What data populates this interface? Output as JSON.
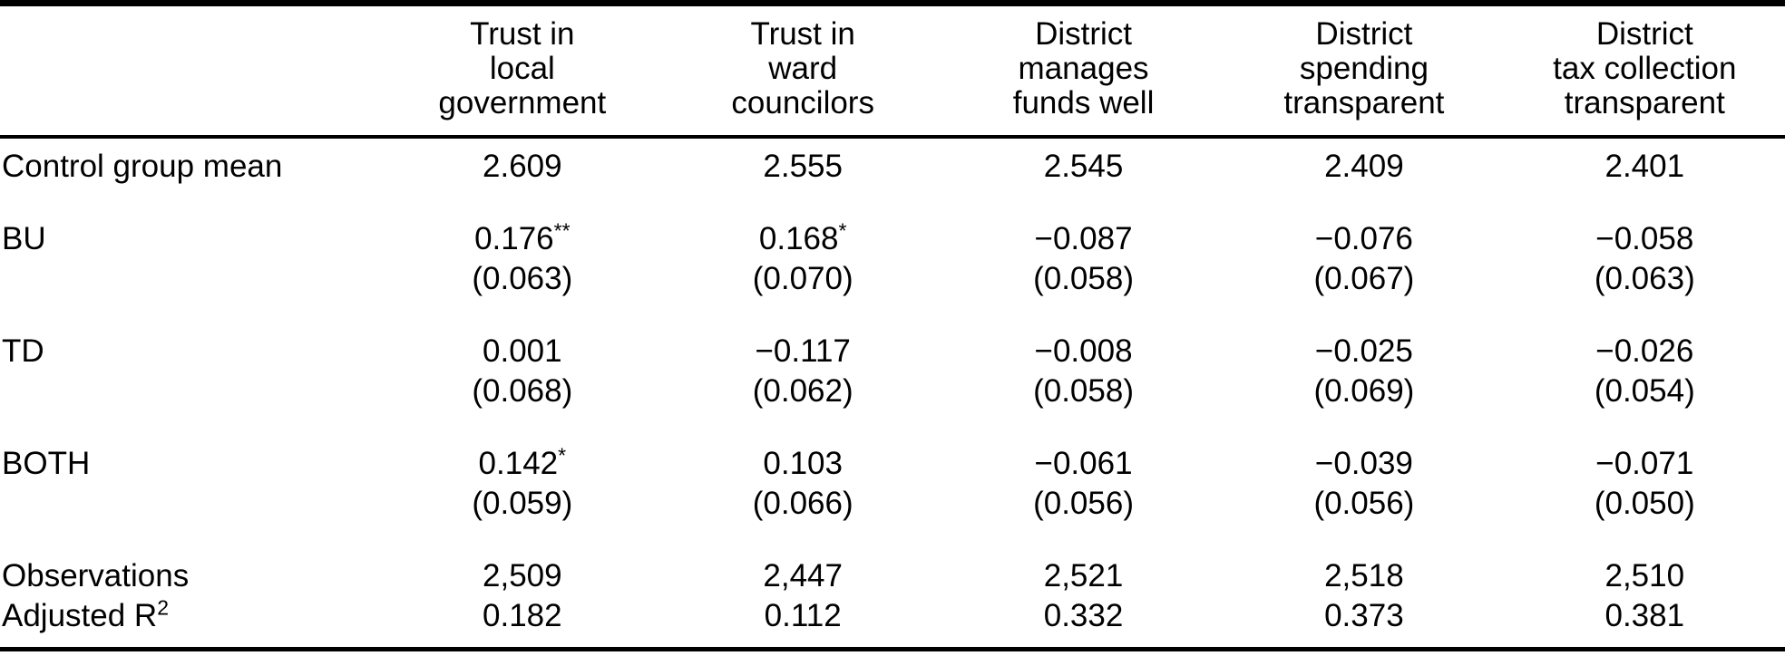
{
  "table": {
    "columns": [
      "Trust in\nlocal\ngovernment",
      "Trust in\nward\ncouncilors",
      "District\nmanages\nfunds well",
      "District\nspending\ntransparent",
      "District\ntax collection\ntransparent"
    ],
    "rows": {
      "control_mean": {
        "label": "Control group mean",
        "values": [
          "2.609",
          "2.555",
          "2.545",
          "2.409",
          "2.401"
        ]
      },
      "bu": {
        "label": "BU",
        "coefs": [
          {
            "v": "0.176",
            "s": "**"
          },
          {
            "v": "0.168",
            "s": "*"
          },
          {
            "v": "−0.087",
            "s": ""
          },
          {
            "v": "−0.076",
            "s": ""
          },
          {
            "v": "−0.058",
            "s": ""
          }
        ],
        "ses": [
          "(0.063)",
          "(0.070)",
          "(0.058)",
          "(0.067)",
          "(0.063)"
        ]
      },
      "td": {
        "label": "TD",
        "coefs": [
          {
            "v": "0.001",
            "s": ""
          },
          {
            "v": "−0.117",
            "s": ""
          },
          {
            "v": "−0.008",
            "s": ""
          },
          {
            "v": "−0.025",
            "s": ""
          },
          {
            "v": "−0.026",
            "s": ""
          }
        ],
        "ses": [
          "(0.068)",
          "(0.062)",
          "(0.058)",
          "(0.069)",
          "(0.054)"
        ]
      },
      "both": {
        "label": "BOTH",
        "coefs": [
          {
            "v": "0.142",
            "s": "*"
          },
          {
            "v": "0.103",
            "s": ""
          },
          {
            "v": "−0.061",
            "s": ""
          },
          {
            "v": "−0.039",
            "s": ""
          },
          {
            "v": "−0.071",
            "s": ""
          }
        ],
        "ses": [
          "(0.059)",
          "(0.066)",
          "(0.056)",
          "(0.056)",
          "(0.050)"
        ]
      },
      "observations": {
        "label": "Observations",
        "values": [
          "2,509",
          "2,447",
          "2,521",
          "2,518",
          "2,510"
        ]
      },
      "adj_r2": {
        "label_base": "Adjusted R",
        "label_sup": "2",
        "values": [
          "0.182",
          "0.112",
          "0.332",
          "0.373",
          "0.381"
        ]
      }
    }
  }
}
